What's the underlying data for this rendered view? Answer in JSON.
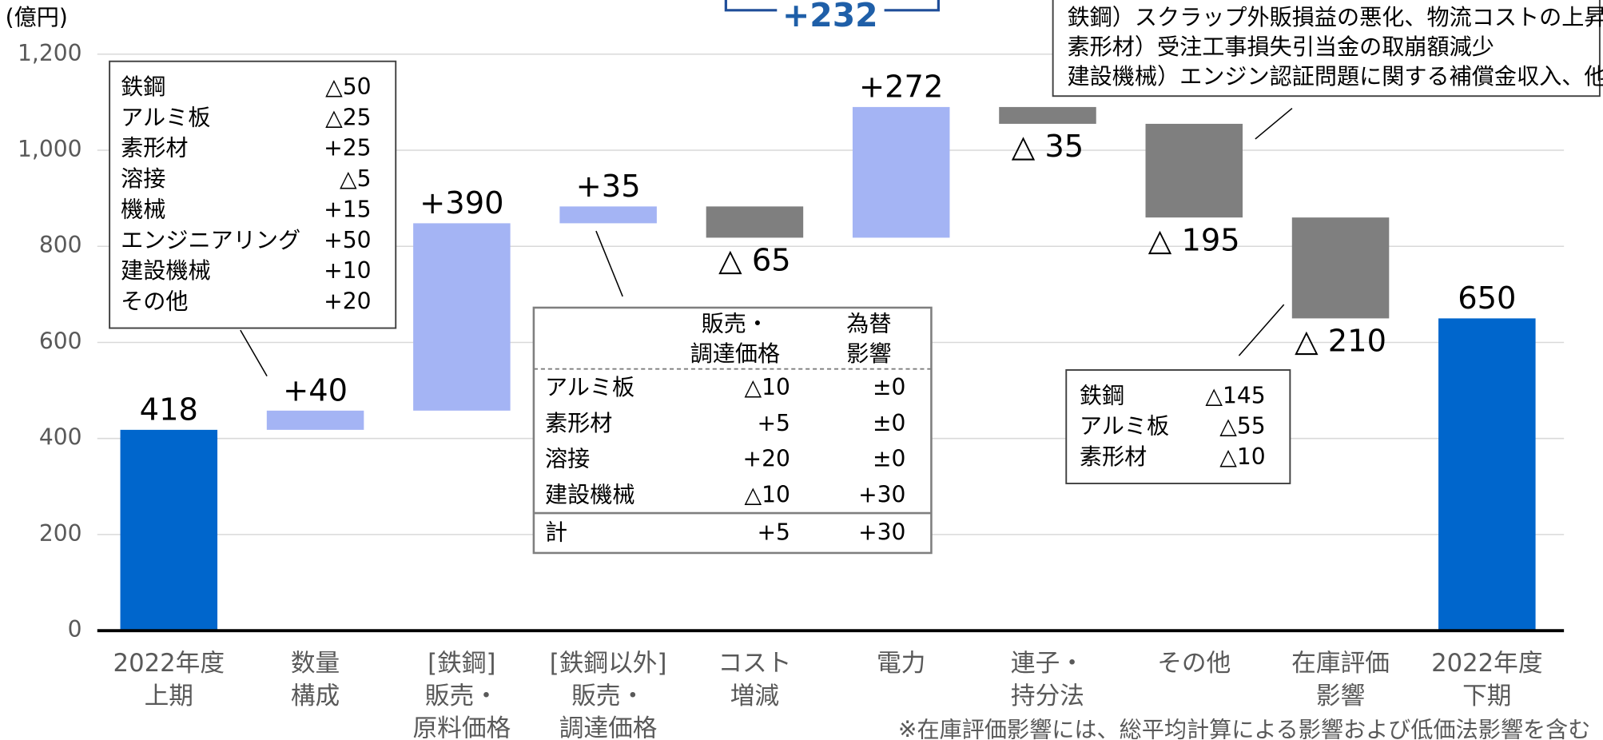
{
  "chart_data": {
    "type": "waterfall",
    "y_unit": "(億円)",
    "categories": [
      [
        "2022年度",
        "上期"
      ],
      [
        "数量",
        "構成"
      ],
      [
        "[鉄鋼]",
        "販売・",
        "原料価格"
      ],
      [
        "[鉄鋼以外]",
        "販売・",
        "調達価格"
      ],
      [
        "コスト",
        "増減"
      ],
      [
        "電力"
      ],
      [
        "連子・",
        "持分法"
      ],
      [
        "その他"
      ],
      [
        "在庫評価",
        "影響"
      ],
      [
        "2022年度",
        "下期"
      ]
    ],
    "values": [
      418,
      40,
      390,
      35,
      -65,
      272,
      -35,
      -195,
      -210,
      650
    ],
    "value_labels": [
      "418",
      "+40",
      "+390",
      "+35",
      "△ 65",
      "+272",
      "△ 35",
      "△ 195",
      "△ 210",
      "650"
    ],
    "measures": [
      "total",
      "relative",
      "relative",
      "relative",
      "relative",
      "relative",
      "relative",
      "relative",
      "relative",
      "total"
    ],
    "colors": {
      "total": "#0066cc",
      "increase": "#a4b4f4",
      "decrease": "#7f7f7f"
    },
    "ylim": [
      0,
      1200
    ],
    "yticks": [
      0,
      200,
      400,
      600,
      800,
      {
        "value": 1000,
        "label": "1,000"
      },
      {
        "value": 1200,
        "label": "1,200"
      }
    ],
    "grid": true,
    "annotations": {
      "total_change": "+232",
      "left_box": [
        [
          "鉄鋼",
          "△50"
        ],
        [
          "アルミ板",
          "△25"
        ],
        [
          "素形材",
          "+25"
        ],
        [
          "溶接",
          "△5"
        ],
        [
          "機械",
          "+15"
        ],
        [
          "エンジニアリング",
          "+50"
        ],
        [
          "建設機械",
          "+10"
        ],
        [
          "その他",
          "+20"
        ]
      ],
      "mid_table": {
        "headers": [
          [
            "販売・",
            "調達価格"
          ],
          [
            "為替",
            "影響"
          ]
        ],
        "rows": [
          [
            "アルミ板",
            "△10",
            "±0"
          ],
          [
            "素形材",
            "+5",
            "±0"
          ],
          [
            "溶接",
            "+20",
            "±0"
          ],
          [
            "建設機械",
            "△10",
            "+30"
          ]
        ],
        "total": [
          "計",
          "+5",
          "+30"
        ]
      },
      "right_top": [
        "鉄鋼）スクラップ外販損益の悪化、物流コストの上昇",
        "素形材）受注工事損失引当金の取崩額減少",
        "建設機械）エンジン認証問題に関する補償金収入、他"
      ],
      "right_box": [
        [
          "鉄鋼",
          "△145"
        ],
        [
          "アルミ板",
          "△55"
        ],
        [
          "素形材",
          "△10"
        ]
      ],
      "footnote": "※在庫評価影響には、総平均計算による影響および低価法影響を含む"
    }
  }
}
